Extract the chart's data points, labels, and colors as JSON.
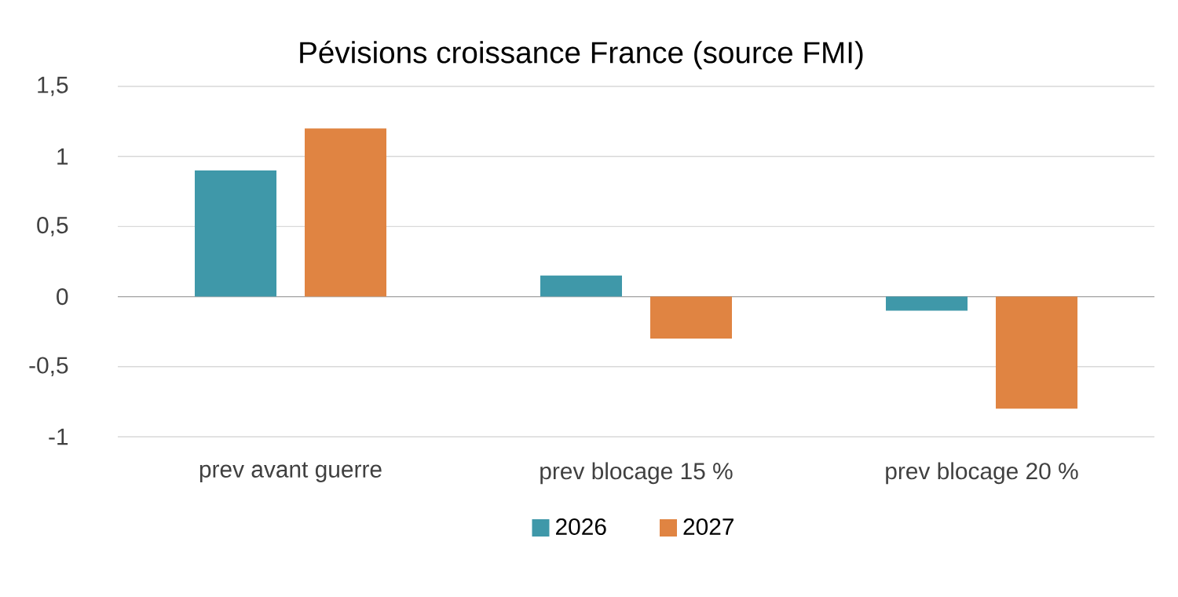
{
  "chart_data": {
    "type": "bar",
    "title": "Pévisions croissance France (source FMI)",
    "categories": [
      "prev avant guerre",
      "prev blocage 15 %",
      "prev blocage 20 %"
    ],
    "series": [
      {
        "name": "2026",
        "color": "#3f98a9",
        "values": [
          0.9,
          0.15,
          -0.1
        ]
      },
      {
        "name": "2027",
        "color": "#e08442",
        "values": [
          1.2,
          -0.3,
          -0.8
        ]
      }
    ],
    "ylim": [
      -1,
      1.5
    ],
    "yticks": [
      -1,
      {
        "value": -0.5,
        "label": "-0,5"
      },
      0,
      {
        "value": 0.5,
        "label": "0,5"
      },
      1,
      {
        "value": 1.5,
        "label": "1,5"
      }
    ],
    "grid": "y",
    "legend": "bottom"
  }
}
